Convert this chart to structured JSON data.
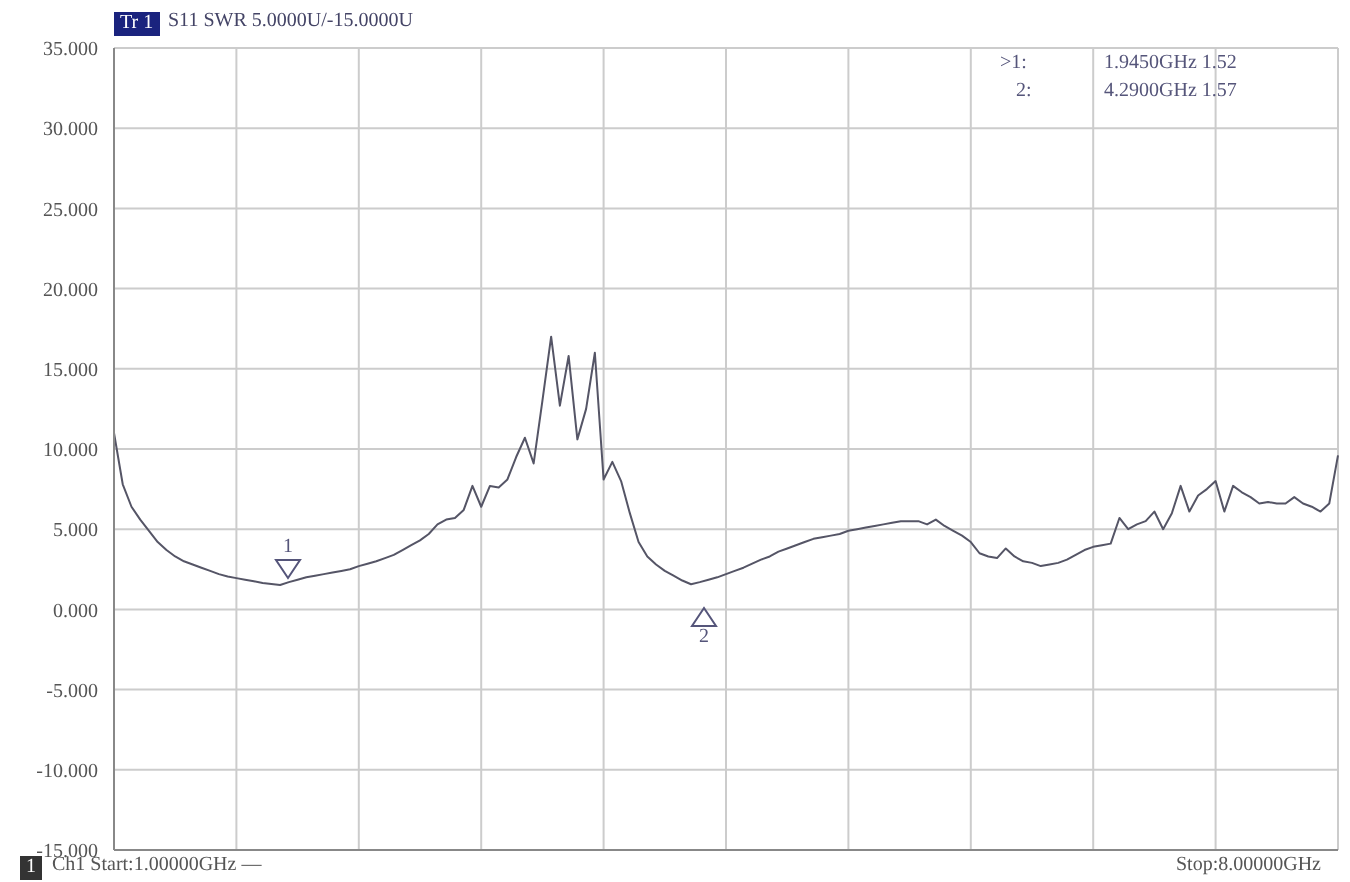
{
  "chart_data": {
    "type": "line",
    "title": "S11 SWR 5.0000U/-15.0000U",
    "categories": [
      null,
      null,
      null,
      null,
      null,
      null,
      null,
      null,
      null,
      null,
      null,
      null,
      null,
      null,
      null,
      null,
      null,
      null,
      null,
      null,
      null,
      null,
      null,
      null,
      null,
      null,
      null,
      null,
      null,
      null,
      null,
      null,
      null,
      null,
      null,
      null,
      null,
      null,
      null,
      null,
      null,
      null,
      null,
      null,
      null,
      null,
      null,
      null,
      null,
      null,
      null,
      null,
      null,
      null,
      null,
      null,
      null,
      null,
      null,
      null,
      null,
      null,
      null,
      null,
      null,
      null,
      null,
      null,
      null,
      null,
      null,
      null,
      null,
      null,
      null,
      null,
      null,
      null,
      null,
      null,
      null,
      null,
      null,
      null,
      null,
      null,
      null,
      null,
      null,
      null,
      null,
      null,
      null,
      null,
      null,
      null,
      null,
      null,
      null,
      null,
      null,
      null,
      null,
      null,
      null,
      null,
      null,
      null,
      null,
      null,
      null,
      null,
      null,
      null,
      null,
      null,
      null,
      null,
      null,
      null,
      null,
      null,
      null,
      null,
      null,
      null,
      null,
      null,
      null,
      null,
      null,
      null,
      null,
      null,
      null,
      null,
      null,
      null,
      null,
      null,
      null
    ],
    "series": [
      {
        "color": "#555566",
        "values": [
          11.0,
          7.8,
          6.4,
          5.6,
          4.9,
          4.2,
          3.7,
          3.3,
          3.0,
          2.8,
          2.6,
          2.4,
          2.2,
          2.05,
          1.95,
          1.85,
          1.75,
          1.65,
          1.58,
          1.52,
          1.7,
          1.85,
          2.0,
          2.1,
          2.2,
          2.3,
          2.4,
          2.5,
          2.7,
          2.85,
          3.0,
          3.2,
          3.4,
          3.7,
          4.0,
          4.3,
          4.7,
          5.3,
          5.6,
          5.7,
          6.2,
          7.7,
          6.4,
          7.7,
          7.6,
          8.1,
          9.5,
          10.7,
          9.1,
          13.0,
          17.0,
          12.7,
          15.8,
          10.6,
          12.5,
          16.0,
          8.1,
          9.2,
          8.0,
          6.0,
          4.2,
          3.3,
          2.8,
          2.4,
          2.1,
          1.8,
          1.57,
          1.7,
          1.85,
          2.0,
          2.2,
          2.4,
          2.6,
          2.85,
          3.1,
          3.3,
          3.6,
          3.8,
          4.0,
          4.2,
          4.4,
          4.5,
          4.6,
          4.7,
          4.9,
          5.0,
          5.1,
          5.2,
          5.3,
          5.4,
          5.5,
          5.5,
          5.5,
          5.3,
          5.6,
          5.2,
          4.9,
          4.6,
          4.2,
          3.5,
          3.3,
          3.2,
          3.8,
          3.3,
          3.0,
          2.9,
          2.7,
          2.8,
          2.9,
          3.1,
          3.4,
          3.7,
          3.9,
          4.0,
          4.1,
          5.7,
          5.0,
          5.3,
          5.5,
          6.1,
          5.0,
          6.0,
          7.7,
          6.1,
          7.1,
          7.5,
          8.0,
          6.1,
          7.7,
          7.3,
          7.0,
          6.6,
          6.7,
          6.6,
          6.6,
          7.0,
          6.6,
          6.4,
          6.1,
          6.6,
          9.6
        ]
      }
    ],
    "ylim": [
      -15,
      35
    ],
    "yticks": [
      {
        "value": -15,
        "label": "-15.000"
      },
      {
        "value": -10,
        "label": "-10.000"
      },
      {
        "value": -5,
        "label": "-5.000"
      },
      {
        "value": 0,
        "label": "0.000"
      },
      {
        "value": 5,
        "label": "5.000"
      },
      {
        "value": 10,
        "label": "10.000"
      },
      {
        "value": 15,
        "label": "15.000"
      },
      {
        "value": 20,
        "label": "20.000"
      },
      {
        "value": 25,
        "label": "25.000"
      },
      {
        "value": 30,
        "label": "30.000"
      },
      {
        "value": 35,
        "label": "35.000"
      }
    ],
    "tick_labels": "y",
    "grid": true,
    "legend": false,
    "marker": "none",
    "line_style": "solid",
    "annotations": [
      "Tr 1",
      ">1:",
      "1.9450GHz 1.52",
      "2:",
      "4.2900GHz 1.57",
      "1",
      "Ch1  Start:1.00000GHz —",
      "Stop:8.00000GHz",
      "1",
      "2"
    ]
  }
}
